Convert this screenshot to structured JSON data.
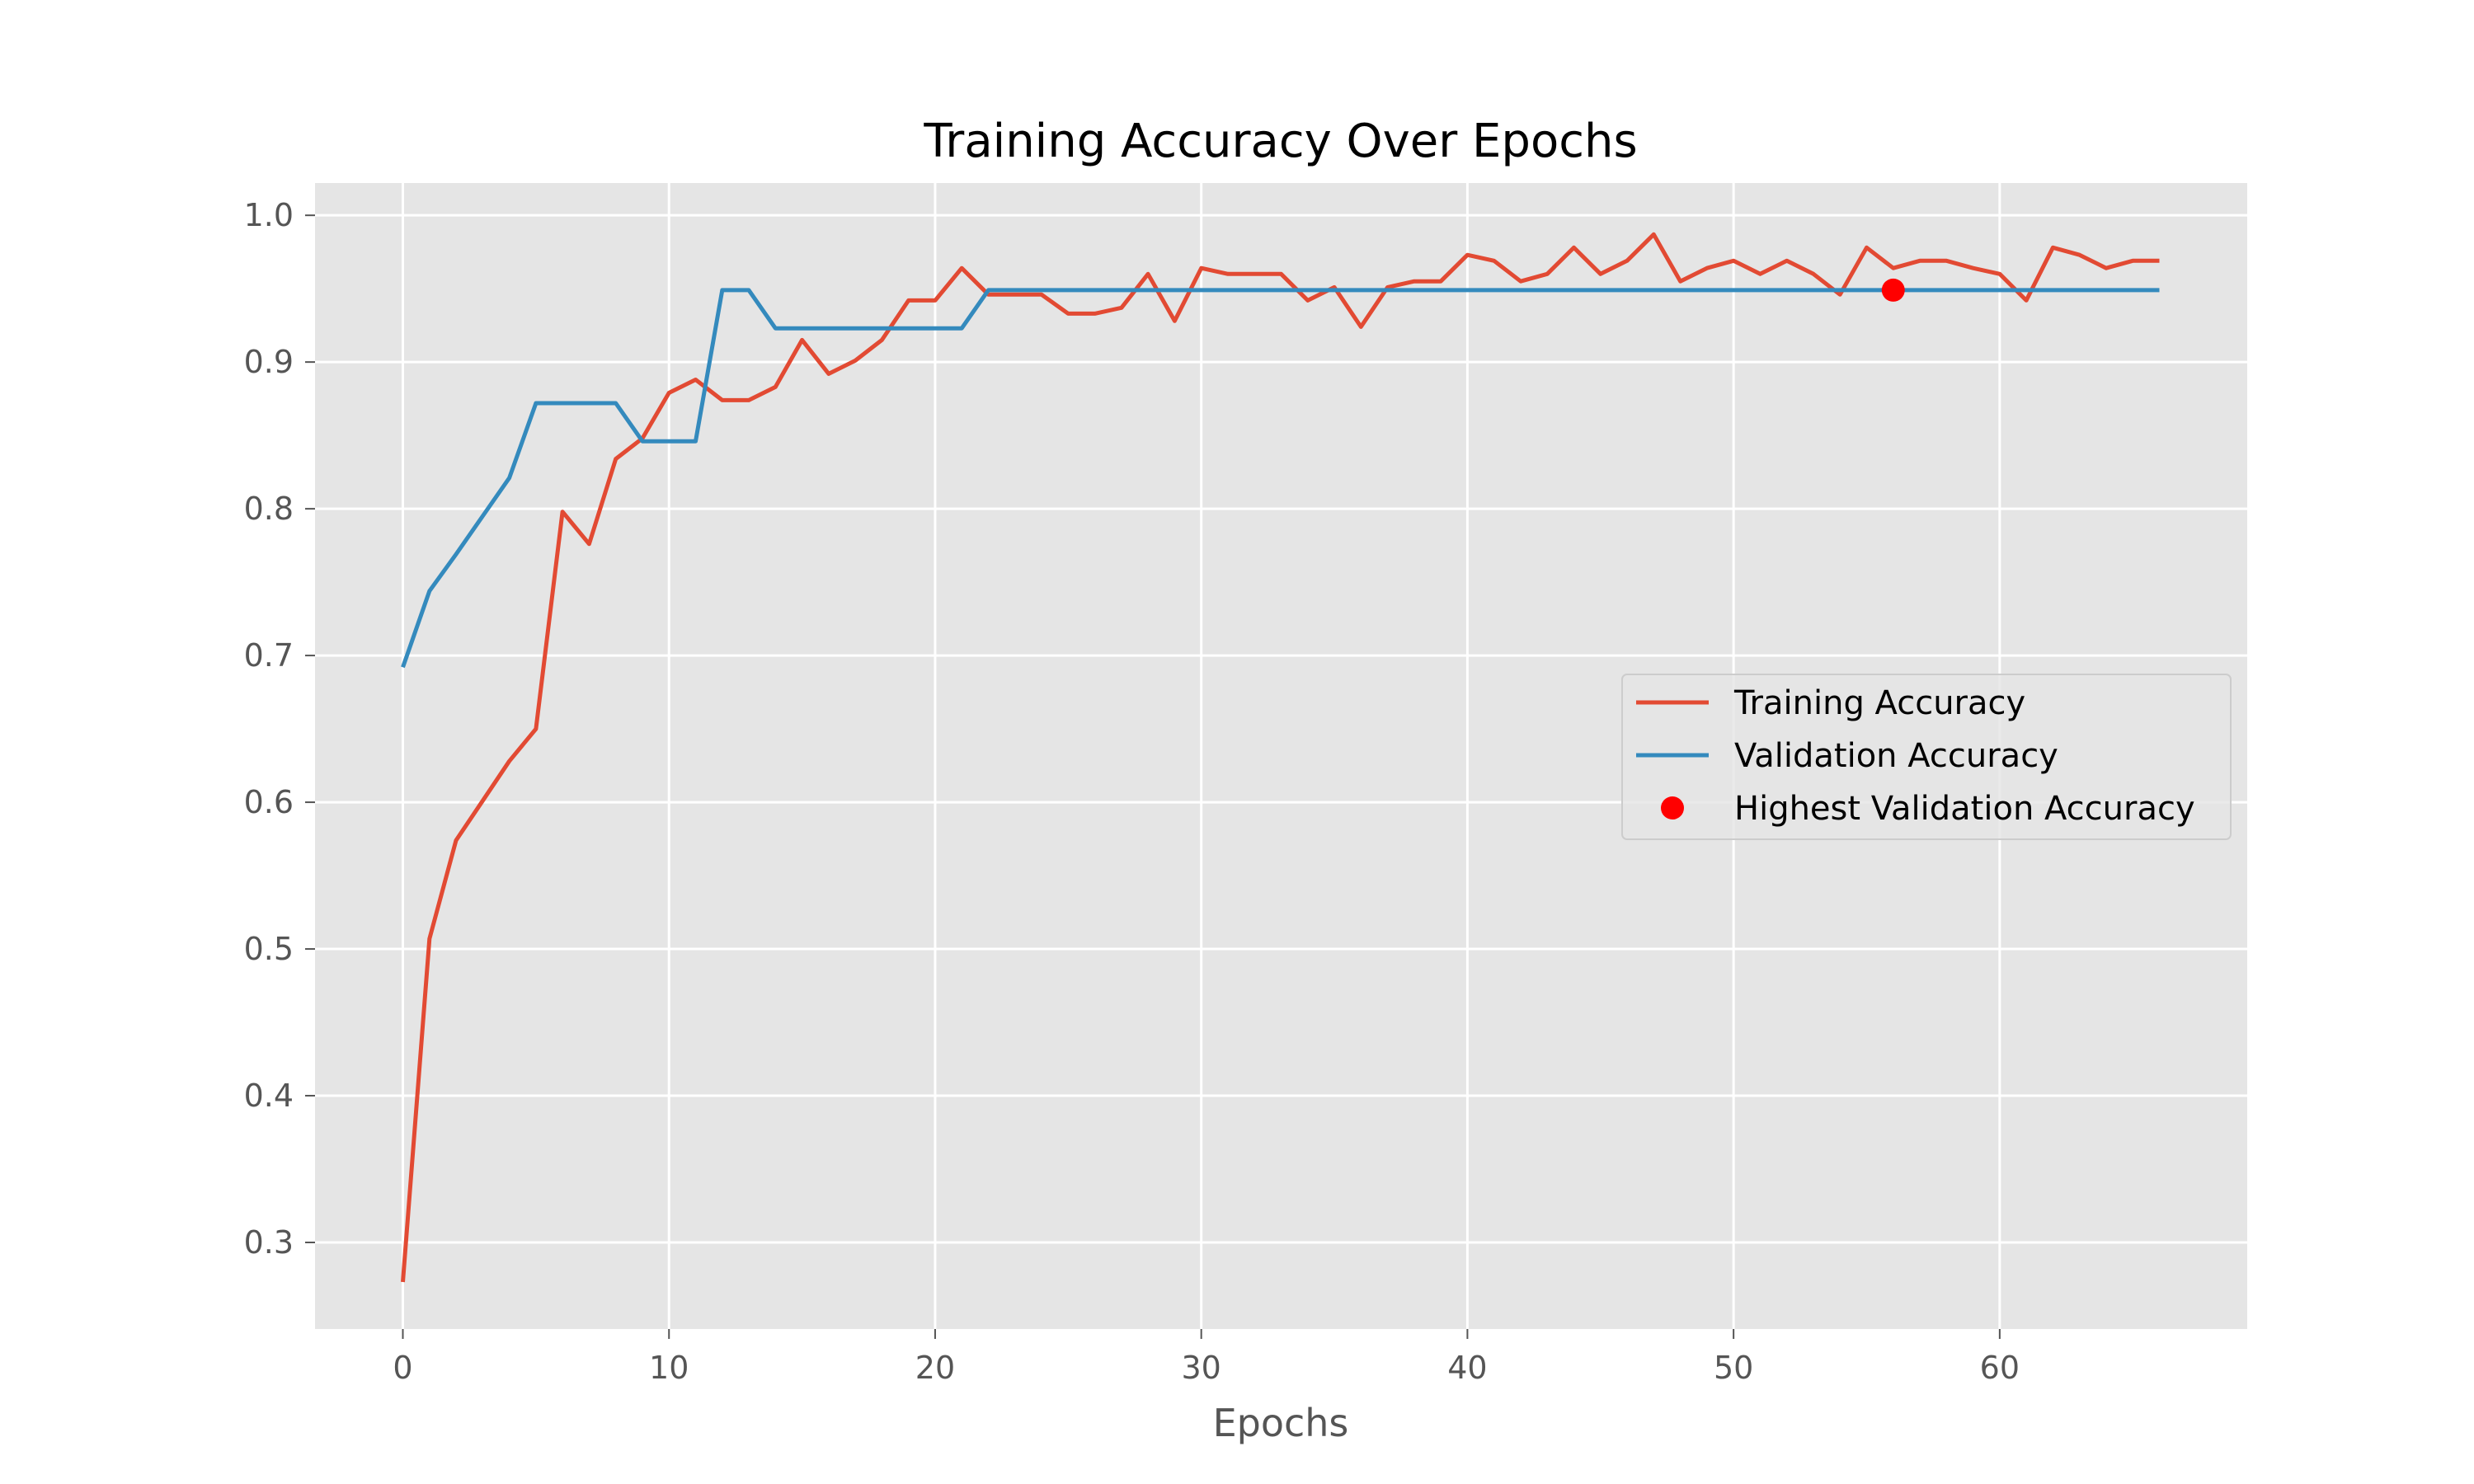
{
  "chart_data": {
    "type": "line",
    "title": "Training Accuracy Over Epochs",
    "xlabel": "Epochs",
    "ylabel": "",
    "xlim": [
      -3.3,
      69.3
    ],
    "ylim": [
      0.241,
      1.022
    ],
    "xticks": [
      0,
      10,
      20,
      30,
      40,
      50,
      60
    ],
    "yticks": [
      0.3,
      0.4,
      0.5,
      0.6,
      0.7,
      0.8,
      0.9,
      1.0
    ],
    "grid": true,
    "legend_position": "center-right",
    "series": [
      {
        "name": "Training Accuracy",
        "color": "#E24A33",
        "x": [
          0,
          1,
          2,
          3,
          4,
          5,
          6,
          7,
          8,
          9,
          10,
          11,
          12,
          13,
          14,
          15,
          16,
          17,
          18,
          19,
          20,
          21,
          22,
          23,
          24,
          25,
          26,
          27,
          28,
          29,
          30,
          31,
          32,
          33,
          34,
          35,
          36,
          37,
          38,
          39,
          40,
          41,
          42,
          43,
          44,
          45,
          46,
          47,
          48,
          49,
          50,
          51,
          52,
          53,
          54,
          55,
          56,
          57,
          58,
          59,
          60,
          61,
          62,
          63,
          64,
          65,
          66
        ],
        "values": [
          0.273,
          0.507,
          0.574,
          0.601,
          0.628,
          0.65,
          0.798,
          0.776,
          0.834,
          0.848,
          0.879,
          0.888,
          0.874,
          0.874,
          0.883,
          0.915,
          0.892,
          0.901,
          0.915,
          0.942,
          0.942,
          0.964,
          0.946,
          0.946,
          0.946,
          0.933,
          0.933,
          0.937,
          0.96,
          0.928,
          0.964,
          0.96,
          0.96,
          0.96,
          0.942,
          0.951,
          0.924,
          0.951,
          0.955,
          0.955,
          0.973,
          0.969,
          0.955,
          0.96,
          0.978,
          0.96,
          0.969,
          0.987,
          0.955,
          0.964,
          0.969,
          0.96,
          0.969,
          0.96,
          0.946,
          0.978,
          0.964,
          0.969,
          0.969,
          0.964,
          0.96,
          0.942,
          0.978,
          0.973,
          0.964,
          0.969,
          0.969
        ]
      },
      {
        "name": "Validation Accuracy",
        "color": "#348ABD",
        "x": [
          0,
          1,
          2,
          3,
          4,
          5,
          6,
          7,
          8,
          9,
          10,
          11,
          12,
          13,
          14,
          15,
          16,
          17,
          18,
          19,
          20,
          21,
          22,
          23,
          24,
          25,
          26,
          27,
          28,
          29,
          30,
          31,
          32,
          33,
          34,
          35,
          36,
          37,
          38,
          39,
          40,
          41,
          42,
          43,
          44,
          45,
          46,
          47,
          48,
          49,
          50,
          51,
          52,
          53,
          54,
          55,
          56,
          57,
          58,
          59,
          60,
          61,
          62,
          63,
          64,
          65,
          66
        ],
        "values": [
          0.692,
          0.744,
          0.769,
          0.795,
          0.821,
          0.872,
          0.872,
          0.872,
          0.872,
          0.846,
          0.846,
          0.846,
          0.949,
          0.949,
          0.923,
          0.923,
          0.923,
          0.923,
          0.923,
          0.923,
          0.923,
          0.923,
          0.949,
          0.949,
          0.949,
          0.949,
          0.949,
          0.949,
          0.949,
          0.949,
          0.949,
          0.949,
          0.949,
          0.949,
          0.949,
          0.949,
          0.949,
          0.949,
          0.949,
          0.949,
          0.949,
          0.949,
          0.949,
          0.949,
          0.949,
          0.949,
          0.949,
          0.949,
          0.949,
          0.949,
          0.949,
          0.949,
          0.949,
          0.949,
          0.949,
          0.949,
          0.949,
          0.949,
          0.949,
          0.949,
          0.949,
          0.949,
          0.949,
          0.949,
          0.949,
          0.949,
          0.949
        ]
      }
    ],
    "highlight": {
      "name": "Highest Validation Accuracy",
      "color": "#FF0000",
      "x": 56,
      "y": 0.949
    }
  }
}
